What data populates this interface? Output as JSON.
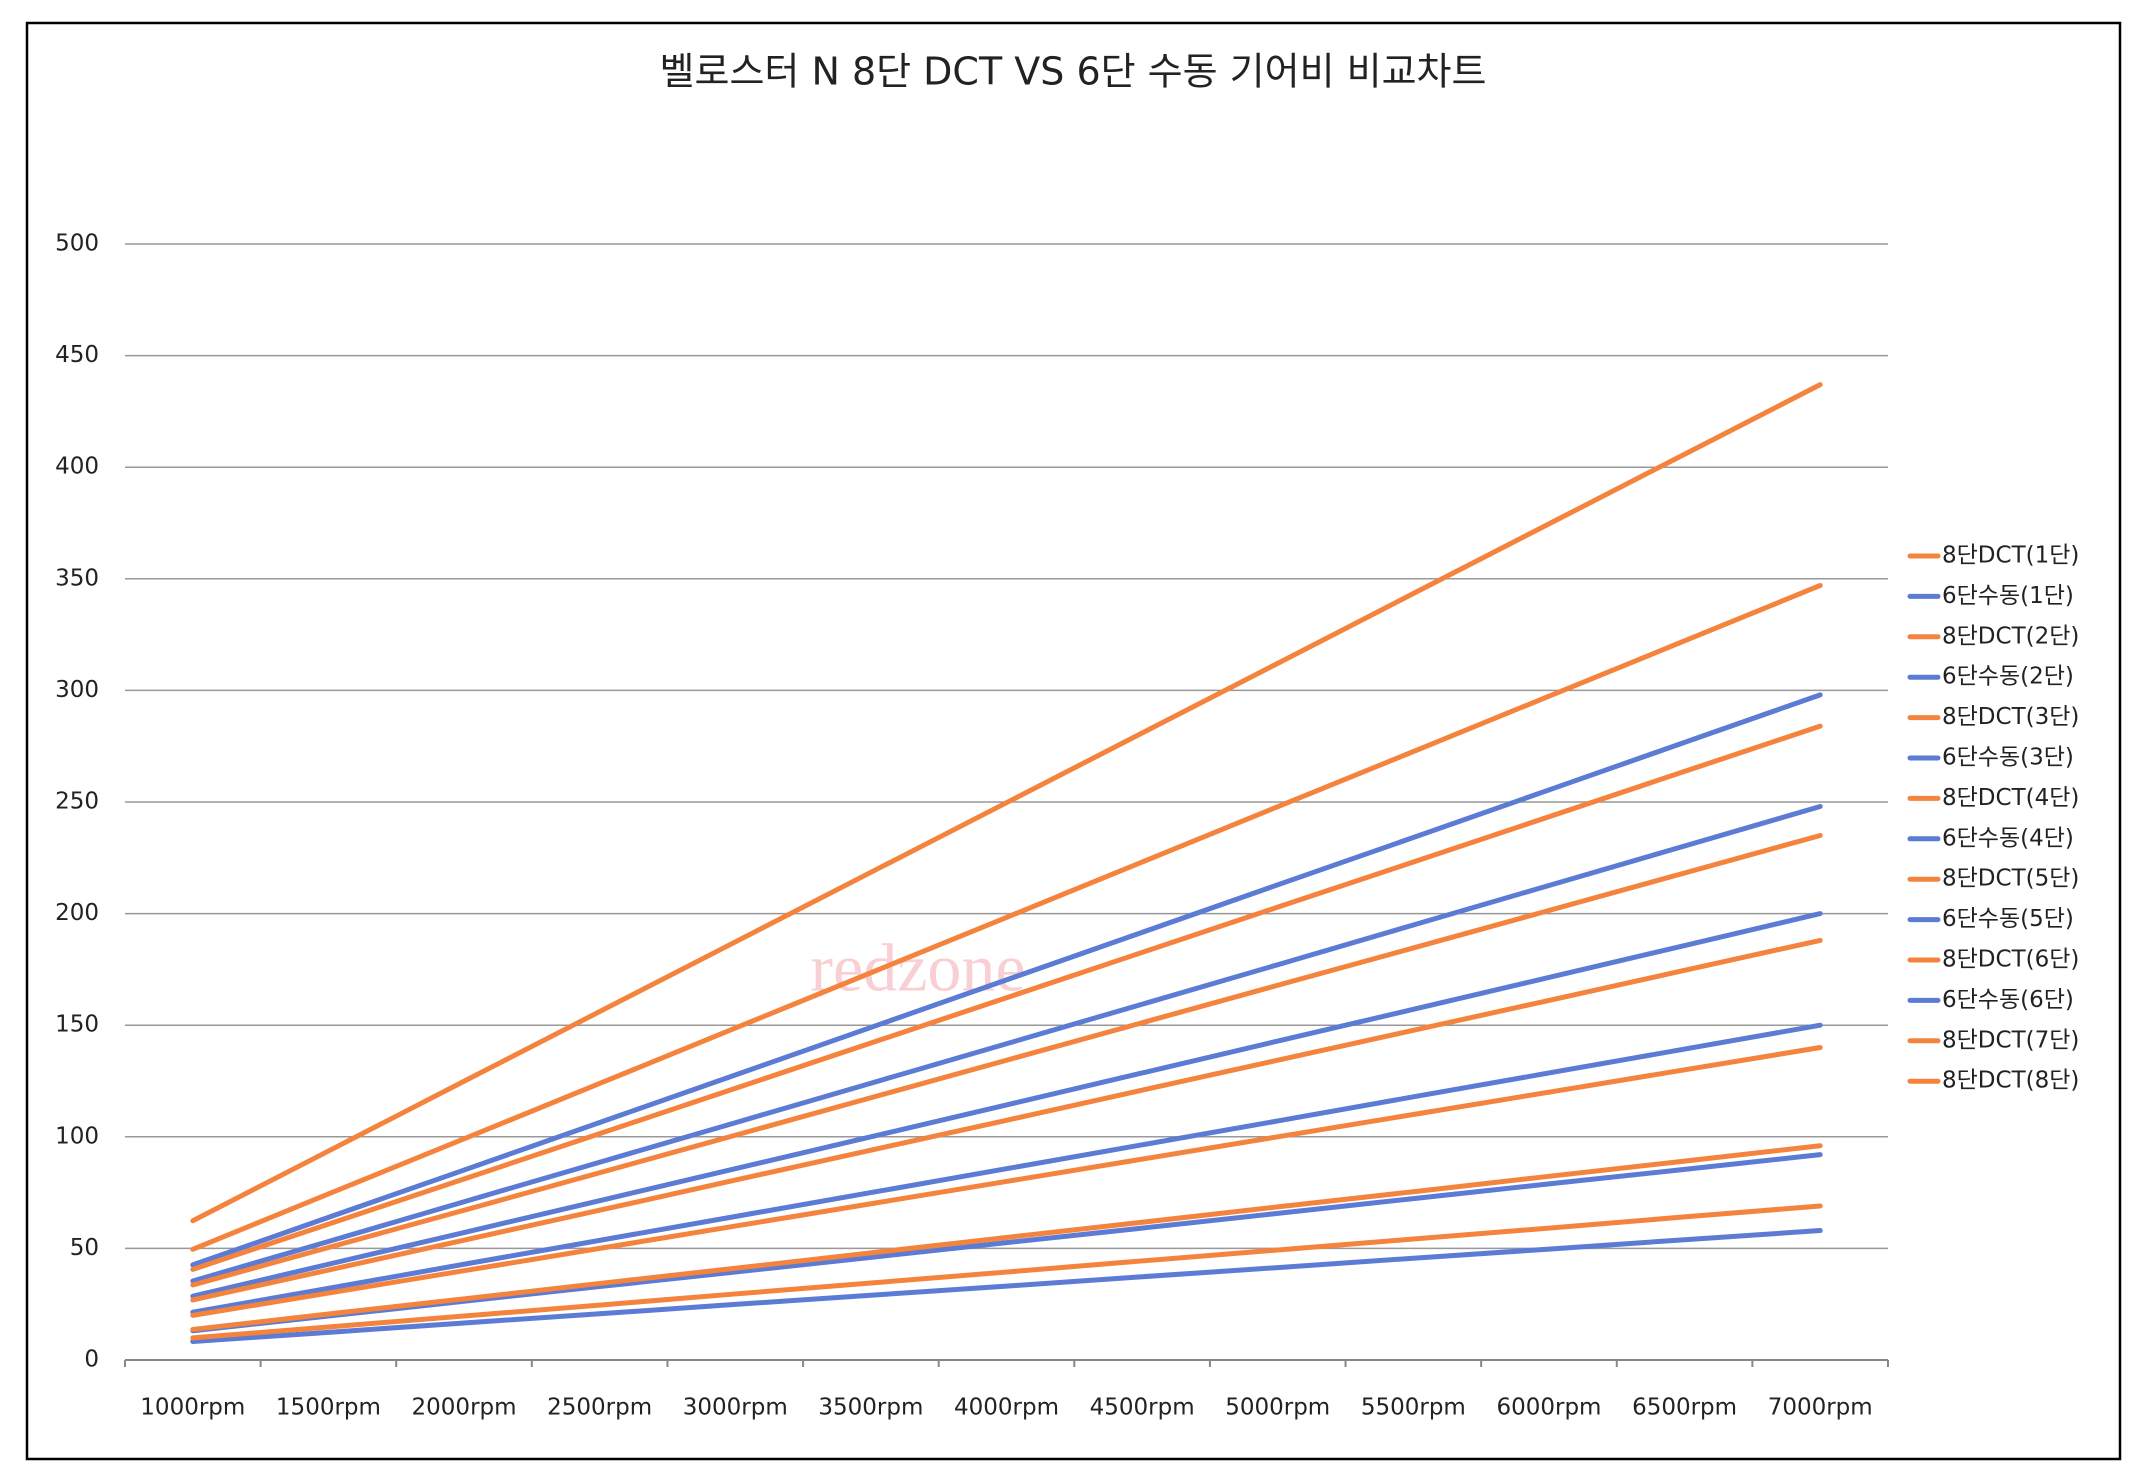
{
  "chart_data": {
    "type": "line",
    "title": "벨로스터 N 8단 DCT VS 6단 수동 기어비 비교차트",
    "watermark": "redzone",
    "categories": [
      "1000rpm",
      "1500rpm",
      "2000rpm",
      "2500rpm",
      "3000rpm",
      "3500rpm",
      "4000rpm",
      "4500rpm",
      "5000rpm",
      "5500rpm",
      "6000rpm",
      "6500rpm",
      "7000rpm"
    ],
    "ylim": [
      0,
      500
    ],
    "yticks": [
      0,
      50,
      100,
      150,
      200,
      250,
      300,
      350,
      400,
      450,
      500
    ],
    "grid": true,
    "legend": "right",
    "series": [
      {
        "name": "8단DCT(1단)",
        "color": "#f4843d",
        "values": [
          62.4,
          93.6,
          124.9,
          156.1,
          187.3,
          218.5,
          249.7,
          280.9,
          312.1,
          343.4,
          374.6,
          405.8,
          437
        ]
      },
      {
        "name": "6단수동(1단)",
        "color": "#5b7bd5",
        "values": [
          42.6,
          63.9,
          85.1,
          106.4,
          127.7,
          149,
          170.3,
          191.6,
          212.9,
          234.1,
          255.4,
          276.7,
          298
        ]
      },
      {
        "name": "8단DCT(2단)",
        "color": "#f4843d",
        "values": [
          49.6,
          74.4,
          99.1,
          123.9,
          148.7,
          173.5,
          198.3,
          223.1,
          247.9,
          272.6,
          297.4,
          322.2,
          347
        ]
      },
      {
        "name": "6단수동(2단)",
        "color": "#5b7bd5",
        "values": [
          35.4,
          53.1,
          70.9,
          88.6,
          106.3,
          124,
          141.7,
          159.4,
          177.1,
          194.9,
          212.6,
          230.3,
          248
        ]
      },
      {
        "name": "8단DCT(3단)",
        "color": "#f4843d",
        "values": [
          40.6,
          60.9,
          81.1,
          101.4,
          121.7,
          142,
          162.3,
          182.6,
          202.9,
          223.1,
          243.4,
          263.7,
          284
        ]
      },
      {
        "name": "6단수동(3단)",
        "color": "#5b7bd5",
        "values": [
          28.6,
          42.9,
          57.1,
          71.4,
          85.7,
          100,
          114.3,
          128.6,
          142.9,
          157.1,
          171.4,
          185.7,
          200
        ]
      },
      {
        "name": "8단DCT(4단)",
        "color": "#f4843d",
        "values": [
          33.6,
          50.4,
          67.1,
          83.9,
          100.7,
          117.5,
          134.3,
          151.1,
          167.9,
          184.6,
          201.4,
          218.2,
          235
        ]
      },
      {
        "name": "6단수동(4단)",
        "color": "#5b7bd5",
        "values": [
          21.4,
          32.1,
          42.9,
          53.6,
          64.3,
          75,
          85.7,
          96.4,
          107.1,
          117.9,
          128.6,
          139.3,
          150
        ]
      },
      {
        "name": "8단DCT(5단)",
        "color": "#f4843d",
        "values": [
          26.9,
          40.3,
          53.7,
          67.1,
          80.6,
          94,
          107.4,
          120.9,
          134.3,
          147.7,
          161.1,
          174.6,
          188
        ]
      },
      {
        "name": "6단수동(5단)",
        "color": "#5b7bd5",
        "values": [
          13.1,
          19.7,
          26.3,
          32.9,
          39.4,
          46,
          52.6,
          59.1,
          65.7,
          72.3,
          78.9,
          85.4,
          92
        ]
      },
      {
        "name": "8단DCT(6단)",
        "color": "#f4843d",
        "values": [
          20,
          30,
          40,
          50,
          60,
          70,
          80,
          90,
          100,
          110,
          120,
          130,
          140
        ]
      },
      {
        "name": "6단수동(6단)",
        "color": "#5b7bd5",
        "values": [
          8.3,
          12.4,
          16.6,
          20.7,
          24.9,
          29,
          33.1,
          37.3,
          41.4,
          45.6,
          49.7,
          53.9,
          58
        ]
      },
      {
        "name": "8단DCT(7단)",
        "color": "#f4843d",
        "values": [
          13.7,
          20.6,
          27.4,
          34.3,
          41.1,
          48,
          54.9,
          61.7,
          68.6,
          75.4,
          82.3,
          89.1,
          96
        ]
      },
      {
        "name": "8단DCT(8단)",
        "color": "#f4843d",
        "values": [
          9.9,
          14.8,
          19.7,
          24.6,
          29.6,
          34.5,
          39.4,
          44.4,
          49.3,
          54.2,
          59.1,
          64.1,
          69
        ]
      }
    ]
  }
}
